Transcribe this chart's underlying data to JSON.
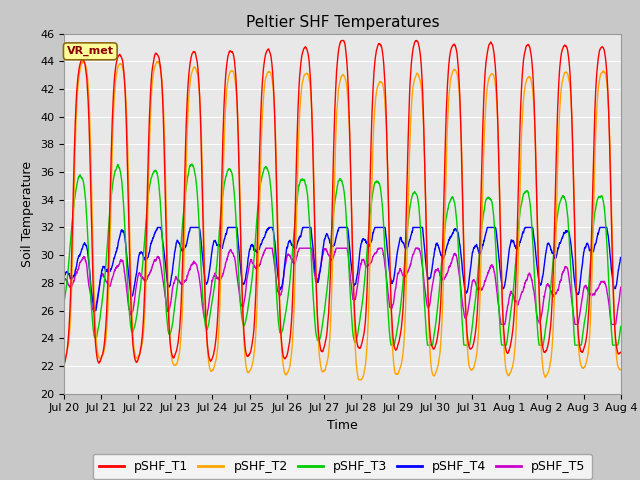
{
  "title": "Peltier SHF Temperatures",
  "xlabel": "Time",
  "ylabel": "Soil Temperature",
  "ylim": [
    20,
    46
  ],
  "yticks": [
    20,
    22,
    24,
    26,
    28,
    30,
    32,
    34,
    36,
    38,
    40,
    42,
    44,
    46
  ],
  "annotation_text": "VR_met",
  "annotation_color": "#8B0000",
  "annotation_bg": "#FFFF99",
  "annotation_edge": "#8B6914",
  "colors": {
    "pSHF_T1": "#FF0000",
    "pSHF_T2": "#FFA500",
    "pSHF_T3": "#00CC00",
    "pSHF_T4": "#0000FF",
    "pSHF_T5": "#CC00CC"
  },
  "fig_bg": "#C8C8C8",
  "plot_bg": "#E8E8E8",
  "grid_color": "#FFFFFF",
  "linewidth": 1.0,
  "title_fontsize": 11,
  "label_fontsize": 9,
  "tick_fontsize": 8,
  "legend_fontsize": 9
}
